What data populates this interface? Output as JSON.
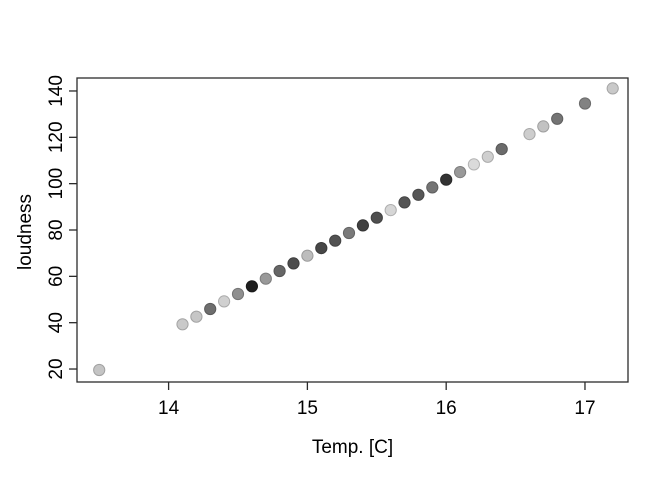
{
  "figure": {
    "background": "#ffffff",
    "axis_color": "#2b2b2b",
    "text_color": "#000000"
  },
  "chart_data": {
    "type": "scatter",
    "title": "",
    "xlabel": "Temp. [C]",
    "ylabel": "loudness",
    "x_ticks": [
      14,
      15,
      16,
      17
    ],
    "y_ticks": [
      20,
      40,
      60,
      80,
      100,
      120,
      140
    ],
    "xlim": [
      13.34,
      17.31
    ],
    "ylim": [
      14.4,
      145.6
    ],
    "grid": false,
    "legend": "none",
    "marker": "filled-circle",
    "points": [
      {
        "temp": 13.5,
        "loudness": 19.6,
        "color": "#c4c4c4"
      },
      {
        "temp": 14.1,
        "loudness": 39.3,
        "color": "#c9c9c9"
      },
      {
        "temp": 14.2,
        "loudness": 42.6,
        "color": "#c6c6c6"
      },
      {
        "temp": 14.3,
        "loudness": 45.9,
        "color": "#6e6e6e"
      },
      {
        "temp": 14.4,
        "loudness": 49.2,
        "color": "#d0d0d0"
      },
      {
        "temp": 14.5,
        "loudness": 52.4,
        "color": "#8f8f8f"
      },
      {
        "temp": 14.6,
        "loudness": 55.7,
        "color": "#1f1f1f"
      },
      {
        "temp": 14.7,
        "loudness": 59.0,
        "color": "#999999"
      },
      {
        "temp": 14.8,
        "loudness": 62.3,
        "color": "#666666"
      },
      {
        "temp": 14.9,
        "loudness": 65.6,
        "color": "#4d4d4d"
      },
      {
        "temp": 15.0,
        "loudness": 68.9,
        "color": "#bdbdbd"
      },
      {
        "temp": 15.1,
        "loudness": 72.2,
        "color": "#474747"
      },
      {
        "temp": 15.2,
        "loudness": 75.4,
        "color": "#525252"
      },
      {
        "temp": 15.3,
        "loudness": 78.7,
        "color": "#7a7a7a"
      },
      {
        "temp": 15.4,
        "loudness": 82.0,
        "color": "#404040"
      },
      {
        "temp": 15.5,
        "loudness": 85.3,
        "color": "#4f4f4f"
      },
      {
        "temp": 15.6,
        "loudness": 88.6,
        "color": "#d6d6d6"
      },
      {
        "temp": 15.7,
        "loudness": 91.9,
        "color": "#545454"
      },
      {
        "temp": 15.8,
        "loudness": 95.2,
        "color": "#575757"
      },
      {
        "temp": 15.9,
        "loudness": 98.4,
        "color": "#747474"
      },
      {
        "temp": 16.0,
        "loudness": 101.7,
        "color": "#333333"
      },
      {
        "temp": 16.1,
        "loudness": 105.0,
        "color": "#999999"
      },
      {
        "temp": 16.2,
        "loudness": 108.3,
        "color": "#dadada"
      },
      {
        "temp": 16.3,
        "loudness": 111.6,
        "color": "#cfcfcf"
      },
      {
        "temp": 16.4,
        "loudness": 114.9,
        "color": "#6b6b6b"
      },
      {
        "temp": 16.6,
        "loudness": 121.4,
        "color": "#cdcdcd"
      },
      {
        "temp": 16.7,
        "loudness": 124.7,
        "color": "#c2c2c2"
      },
      {
        "temp": 16.8,
        "loudness": 128.0,
        "color": "#747474"
      },
      {
        "temp": 17.0,
        "loudness": 134.6,
        "color": "#828282"
      },
      {
        "temp": 17.2,
        "loudness": 141.1,
        "color": "#c9c9c9"
      }
    ]
  }
}
